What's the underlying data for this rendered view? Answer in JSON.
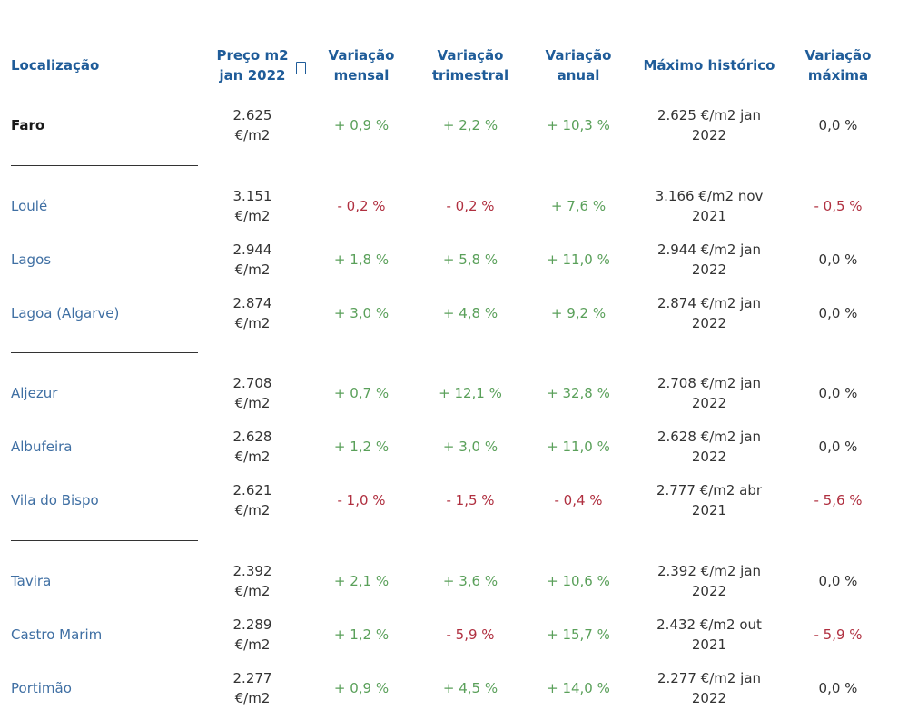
{
  "header": {
    "location": "Localização",
    "price_line1": "Preço m2",
    "price_line2": "jan 2022",
    "monthly_line1": "Variação",
    "monthly_line2": "mensal",
    "quarterly_line1": "Variação",
    "quarterly_line2": "trimestral",
    "annual_line1": "Variação",
    "annual_line2": "anual",
    "max_hist": "Máximo histórico",
    "max_var_line1": "Variação",
    "max_var_line2": "máxima"
  },
  "rows": [
    {
      "name": "Faro",
      "price_line1": "2.625",
      "price_line2": "€/m2",
      "monthly": "+ 0,9 %",
      "quarterly": "+ 2,2 %",
      "annual": "+ 10,3 %",
      "max_line1": "2.625 €/m2 jan",
      "max_line2": "2022",
      "max_var": "0,0 %"
    },
    {
      "name": "Loulé",
      "price_line1": "3.151",
      "price_line2": "€/m2",
      "monthly": "- 0,2 %",
      "quarterly": "- 0,2 %",
      "annual": "+ 7,6 %",
      "max_line1": "3.166 €/m2 nov",
      "max_line2": "2021",
      "max_var": "- 0,5 %"
    },
    {
      "name": "Lagos",
      "price_line1": "2.944",
      "price_line2": "€/m2",
      "monthly": "+ 1,8 %",
      "quarterly": "+ 5,8 %",
      "annual": "+ 11,0 %",
      "max_line1": "2.944 €/m2 jan",
      "max_line2": "2022",
      "max_var": "0,0 %"
    },
    {
      "name": "Lagoa (Algarve)",
      "price_line1": "2.874",
      "price_line2": "€/m2",
      "monthly": "+ 3,0 %",
      "quarterly": "+ 4,8 %",
      "annual": "+ 9,2 %",
      "max_line1": "2.874 €/m2 jan",
      "max_line2": "2022",
      "max_var": "0,0 %"
    },
    {
      "name": "Aljezur",
      "price_line1": "2.708",
      "price_line2": "€/m2",
      "monthly": "+ 0,7 %",
      "quarterly": "+ 12,1 %",
      "annual": "+ 32,8 %",
      "max_line1": "2.708 €/m2 jan",
      "max_line2": "2022",
      "max_var": "0,0 %"
    },
    {
      "name": "Albufeira",
      "price_line1": "2.628",
      "price_line2": "€/m2",
      "monthly": "+ 1,2 %",
      "quarterly": "+ 3,0 %",
      "annual": "+ 11,0 %",
      "max_line1": "2.628 €/m2 jan",
      "max_line2": "2022",
      "max_var": "0,0 %"
    },
    {
      "name": "Vila do Bispo",
      "price_line1": "2.621",
      "price_line2": "€/m2",
      "monthly": "- 1,0 %",
      "quarterly": "- 1,5 %",
      "annual": "- 0,4 %",
      "max_line1": "2.777 €/m2 abr",
      "max_line2": "2021",
      "max_var": "- 5,6 %"
    },
    {
      "name": "Tavira",
      "price_line1": "2.392",
      "price_line2": "€/m2",
      "monthly": "+ 2,1 %",
      "quarterly": "+ 3,6 %",
      "annual": "+ 10,6 %",
      "max_line1": "2.392 €/m2 jan",
      "max_line2": "2022",
      "max_var": "0,0 %"
    },
    {
      "name": "Castro Marim",
      "price_line1": "2.289",
      "price_line2": "€/m2",
      "monthly": "+ 1,2 %",
      "quarterly": "- 5,9 %",
      "annual": "+ 15,7 %",
      "max_line1": "2.432 €/m2 out",
      "max_line2": "2021",
      "max_var": "- 5,9 %"
    },
    {
      "name": "Portimão",
      "price_line1": "2.277",
      "price_line2": "€/m2",
      "monthly": "+ 0,9 %",
      "quarterly": "+ 4,5 %",
      "annual": "+ 14,0 %",
      "max_line1": "2.277 €/m2 jan",
      "max_line2": "2022",
      "max_var": "0,0 %"
    }
  ]
}
